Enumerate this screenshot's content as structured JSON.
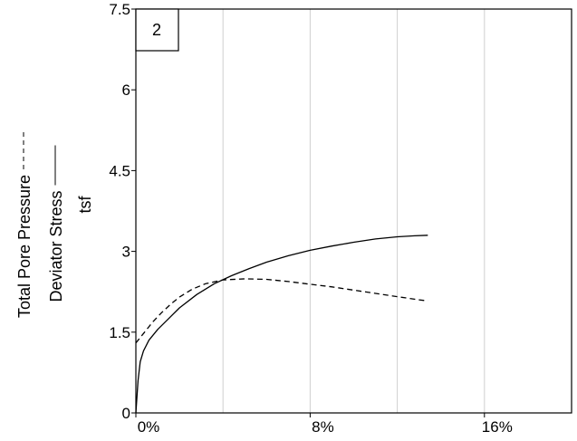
{
  "chart_data": {
    "type": "line",
    "panel_label": "2",
    "ylabel": {
      "line1": "Total Pore Pressure",
      "line2": "Deviator Stress",
      "line3": "tsf"
    },
    "xlim": [
      0,
      20
    ],
    "ylim": [
      0,
      7.5
    ],
    "x_ticks": [
      {
        "value": 0,
        "label": "0%"
      },
      {
        "value": 8,
        "label": "8%"
      },
      {
        "value": 16,
        "label": "16%"
      }
    ],
    "y_ticks": [
      {
        "value": 0,
        "label": "0"
      },
      {
        "value": 1.5,
        "label": "1.5"
      },
      {
        "value": 3,
        "label": "3"
      },
      {
        "value": 4.5,
        "label": "4.5"
      },
      {
        "value": 6,
        "label": "6"
      },
      {
        "value": 7.5,
        "label": "7.5"
      }
    ],
    "x_gridlines": [
      4,
      8,
      12,
      16
    ],
    "y_gridlines": [],
    "series": [
      {
        "style": "solid",
        "x": [
          0,
          0.1,
          0.2,
          0.35,
          0.6,
          1.0,
          1.5,
          2.0,
          2.8,
          3.6,
          4.4,
          5.2,
          6.0,
          7.0,
          8.0,
          9.0,
          10.0,
          11.0,
          12.0,
          12.8,
          13.4
        ],
        "y": [
          0,
          0.6,
          0.95,
          1.15,
          1.35,
          1.55,
          1.75,
          1.95,
          2.2,
          2.4,
          2.55,
          2.68,
          2.8,
          2.92,
          3.02,
          3.1,
          3.17,
          3.23,
          3.27,
          3.29,
          3.3
        ]
      },
      {
        "style": "dashed",
        "x": [
          0,
          0.4,
          0.8,
          1.2,
          1.6,
          2.0,
          2.6,
          3.2,
          4.0,
          5.0,
          6.0,
          7.0,
          8.0,
          9.0,
          10.0,
          11.0,
          12.0,
          13.0,
          13.4
        ],
        "y": [
          1.3,
          1.5,
          1.7,
          1.87,
          2.02,
          2.15,
          2.3,
          2.4,
          2.47,
          2.49,
          2.48,
          2.44,
          2.39,
          2.34,
          2.28,
          2.22,
          2.16,
          2.1,
          2.08
        ]
      }
    ]
  }
}
